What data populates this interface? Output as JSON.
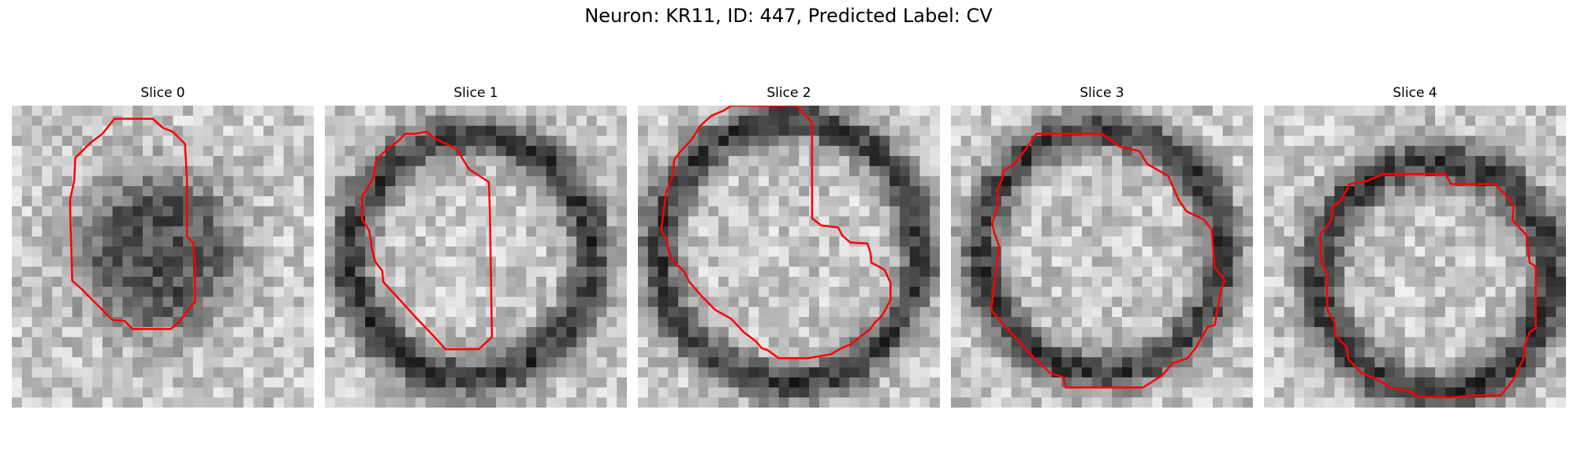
{
  "figure": {
    "title": "Neuron: KR11, ID: 447, Predicted Label: CV"
  },
  "panels": [
    {
      "title": "Slice 0"
    },
    {
      "title": "Slice 1"
    },
    {
      "title": "Slice 2"
    },
    {
      "title": "Slice 3"
    },
    {
      "title": "Slice 4"
    }
  ],
  "image": {
    "grid": "30x30 grayscale microscopy crop",
    "colormap": "gray"
  },
  "contour_color": "#ff0000"
}
